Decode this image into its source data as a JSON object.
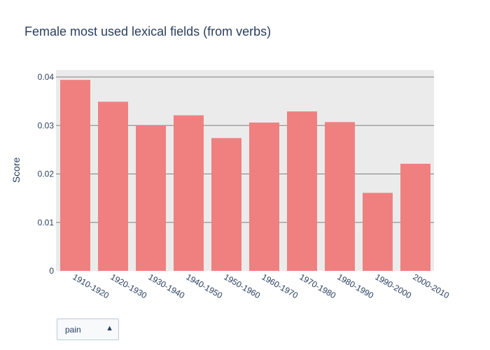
{
  "chart_data": {
    "type": "bar",
    "title": "Female most used lexical fields (from verbs)",
    "ylabel": "Score",
    "xlabel": "",
    "categories": [
      "1910-1920",
      "1920-1930",
      "1930-1940",
      "1940-1950",
      "1950-1960",
      "1960-1970",
      "1970-1980",
      "1980-1990",
      "1990-2000",
      "2000-2010"
    ],
    "values": [
      0.0394,
      0.0349,
      0.0299,
      0.0321,
      0.0274,
      0.0306,
      0.0329,
      0.0307,
      0.0161,
      0.0221
    ],
    "ylim": [
      0,
      0.04
    ],
    "yticks": [
      {
        "value": 0,
        "label": "0"
      },
      {
        "value": 0.01,
        "label": "0.01"
      },
      {
        "value": 0.02,
        "label": "0.02"
      },
      {
        "value": 0.03,
        "label": "0.03"
      },
      {
        "value": 0.04,
        "label": "0.04"
      }
    ],
    "grid": true,
    "bar_color": "#f08080",
    "plot_background": "#ebebeb",
    "grid_color": "#7f7f7f"
  },
  "dropdown": {
    "selected": "pain",
    "arrow_icon": "triangle-up-icon",
    "arrow_glyph": "▲"
  }
}
